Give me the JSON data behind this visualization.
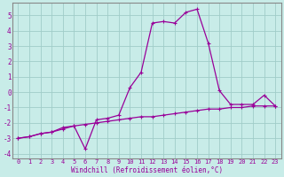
{
  "xlabel": "Windchill (Refroidissement éolien,°C)",
  "bg_color": "#c8ece8",
  "grid_color": "#a0ccc8",
  "line_color": "#990099",
  "spine_color": "#888888",
  "xlim": [
    -0.5,
    23.5
  ],
  "ylim": [
    -4.3,
    5.8
  ],
  "yticks": [
    -4,
    -3,
    -2,
    -1,
    0,
    1,
    2,
    3,
    4,
    5
  ],
  "xticks": [
    0,
    1,
    2,
    3,
    4,
    5,
    6,
    7,
    8,
    9,
    10,
    11,
    12,
    13,
    14,
    15,
    16,
    17,
    18,
    19,
    20,
    21,
    22,
    23
  ],
  "line1_x": [
    0,
    1,
    2,
    3,
    4,
    5,
    6,
    7,
    8,
    9,
    10,
    11,
    12,
    13,
    14,
    15,
    16,
    17,
    18,
    19,
    20,
    21,
    22,
    23
  ],
  "line1_y": [
    -3.0,
    -2.9,
    -2.7,
    -2.6,
    -2.4,
    -2.2,
    -2.1,
    -2.0,
    -1.9,
    -1.8,
    -1.7,
    -1.6,
    -1.6,
    -1.5,
    -1.4,
    -1.3,
    -1.2,
    -1.1,
    -1.1,
    -1.0,
    -1.0,
    -0.9,
    -0.9,
    -0.9
  ],
  "line2_x": [
    0,
    1,
    2,
    3,
    4,
    5,
    6,
    7,
    8,
    9,
    10,
    11,
    12,
    13,
    14,
    15,
    16,
    17,
    18,
    19,
    20,
    21,
    22,
    23
  ],
  "line2_y": [
    -3.0,
    -2.9,
    -2.7,
    -2.6,
    -2.3,
    -2.2,
    -3.7,
    -1.8,
    -1.7,
    -1.5,
    0.3,
    1.3,
    4.5,
    4.6,
    4.5,
    5.2,
    5.4,
    3.2,
    0.1,
    -0.8,
    -0.8,
    -0.8,
    -0.2,
    -0.9
  ],
  "tick_fontsize": 5.0,
  "xlabel_fontsize": 5.5,
  "marker_size": 2.5,
  "line_width": 0.9
}
